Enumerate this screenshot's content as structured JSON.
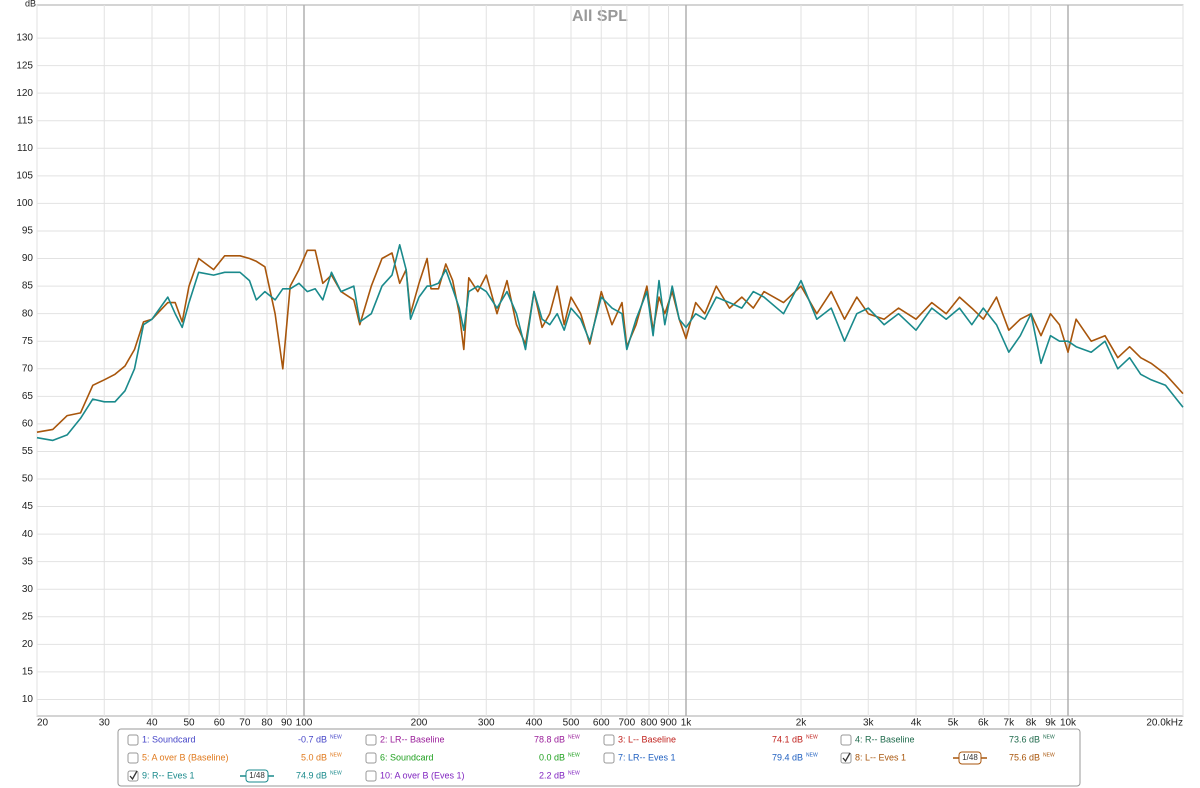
{
  "chart_data": {
    "type": "line",
    "title": "All SPL",
    "y_label": "dB",
    "log_x": true,
    "grid": true,
    "xlim": [
      20,
      20000
    ],
    "ylim": [
      7,
      136
    ],
    "xticks": [
      20,
      30,
      40,
      50,
      60,
      70,
      80,
      90,
      100,
      200,
      300,
      400,
      500,
      600,
      700,
      800,
      900,
      {
        "value": 1000,
        "label": "1k"
      },
      {
        "value": 2000,
        "label": "2k"
      },
      {
        "value": 3000,
        "label": "3k"
      },
      {
        "value": 4000,
        "label": "4k"
      },
      {
        "value": 5000,
        "label": "5k"
      },
      {
        "value": 6000,
        "label": "6k"
      },
      {
        "value": 7000,
        "label": "7k"
      },
      {
        "value": 8000,
        "label": "8k"
      },
      {
        "value": 9000,
        "label": "9k"
      },
      {
        "value": 10000,
        "label": "10k"
      },
      {
        "value": 20000,
        "label": "20.0kHz"
      }
    ],
    "yticks": [
      10,
      15,
      20,
      25,
      30,
      35,
      40,
      45,
      50,
      55,
      60,
      65,
      70,
      75,
      80,
      85,
      90,
      95,
      100,
      105,
      110,
      115,
      120,
      125,
      130
    ],
    "x": [
      20,
      22,
      24,
      26,
      28,
      30,
      32,
      34,
      36,
      38,
      40,
      44,
      46,
      48,
      50,
      53,
      58,
      62,
      68,
      72,
      75,
      79,
      84,
      88,
      92,
      97,
      102,
      107,
      112,
      118,
      125,
      135,
      140,
      150,
      160,
      170,
      178,
      185,
      190,
      200,
      210,
      215,
      225,
      235,
      245,
      255,
      262,
      270,
      285,
      300,
      320,
      340,
      360,
      380,
      400,
      420,
      440,
      460,
      480,
      500,
      530,
      560,
      600,
      640,
      680,
      700,
      740,
      790,
      820,
      850,
      880,
      920,
      960,
      1000,
      1060,
      1120,
      1200,
      1300,
      1400,
      1500,
      1600,
      1800,
      2000,
      2200,
      2400,
      2600,
      2800,
      3000,
      3300,
      3600,
      4000,
      4400,
      4800,
      5200,
      5600,
      6000,
      6500,
      7000,
      7500,
      8000,
      8500,
      9000,
      9500,
      10000,
      10500,
      11500,
      12500,
      13500,
      14500,
      15500,
      16500,
      18000,
      20000
    ],
    "series": [
      {
        "name": "1: Soundcard",
        "color": "#4646c8",
        "checked": false,
        "level": "-0.7 dB",
        "tag": "NEW"
      },
      {
        "name": "2: LR-- Baseline",
        "color": "#9a1e9a",
        "checked": false,
        "level": "78.8 dB",
        "tag": "NEW"
      },
      {
        "name": "3: L-- Baseline",
        "color": "#c0221e",
        "checked": false,
        "level": "74.1 dB",
        "tag": "NEW"
      },
      {
        "name": "4: R-- Baseline",
        "color": "#1f6a4c",
        "checked": false,
        "level": "73.6 dB",
        "tag": "NEW"
      },
      {
        "name": "5: A over B (Baseline)",
        "color": "#e07a1e",
        "checked": false,
        "level": "5.0 dB",
        "tag": "NEW"
      },
      {
        "name": "6: Soundcard",
        "color": "#20a020",
        "checked": false,
        "level": "0.0 dB",
        "tag": "NEW"
      },
      {
        "name": "7: LR-- Eves 1",
        "color": "#2060c0",
        "checked": false,
        "level": "79.4 dB",
        "tag": "NEW"
      },
      {
        "name": "8: L-- Eves 1",
        "color": "#a8560c",
        "checked": true,
        "level": "75.6 dB",
        "tag": "NEW",
        "smoothing": "1/48",
        "values": [
          58.5,
          59,
          61.5,
          62,
          67,
          68,
          69,
          70.5,
          73.5,
          78.5,
          79,
          82,
          82,
          78.5,
          85,
          90,
          88,
          90.5,
          90.5,
          90,
          89.5,
          88.5,
          80,
          70,
          85,
          88,
          91.5,
          91.5,
          85.5,
          87,
          84,
          82.5,
          78,
          85,
          90,
          91,
          85.5,
          88,
          80,
          85.5,
          90,
          84.5,
          84.5,
          89,
          86,
          80,
          73.5,
          86.5,
          84,
          87,
          80,
          86,
          78,
          74.5,
          84,
          77.5,
          80,
          85,
          78,
          83,
          80,
          74.5,
          84,
          78,
          82,
          74,
          78,
          85,
          77,
          83,
          80,
          84,
          79,
          75.5,
          82,
          80,
          85,
          81,
          83,
          81,
          84,
          82,
          85,
          80,
          84,
          79,
          83,
          80,
          79,
          81,
          79,
          82,
          80,
          83,
          81,
          79,
          83,
          77,
          79,
          80,
          76,
          80,
          78,
          73,
          79,
          75,
          76,
          72,
          74,
          72,
          71,
          69,
          65.5
        ]
      },
      {
        "name": "9: R-- Eves 1",
        "color": "#1a8a8c",
        "checked": true,
        "level": "74.9 dB",
        "tag": "NEW",
        "smoothing": "1/48",
        "values": [
          57.5,
          57,
          58,
          61,
          64.5,
          64,
          64,
          66,
          70,
          78,
          79,
          83,
          80,
          77.5,
          82,
          87.5,
          87,
          87.5,
          87.5,
          86,
          82.5,
          84,
          82.5,
          84.5,
          84.5,
          85.5,
          84,
          84.5,
          82.5,
          87.5,
          84,
          85,
          78.5,
          80,
          85,
          87,
          92.5,
          88,
          79,
          83,
          85,
          85,
          85.5,
          88,
          84.5,
          81,
          77,
          84,
          85,
          84,
          81,
          84,
          80,
          73.5,
          84,
          79,
          78,
          80,
          77,
          81,
          79,
          75,
          83,
          81,
          80,
          73.5,
          79,
          84,
          76,
          86,
          78,
          85,
          79,
          77.5,
          80,
          79,
          83,
          82,
          81,
          84,
          83,
          80,
          86,
          79,
          81,
          75,
          80,
          81,
          78,
          80,
          77,
          81,
          79,
          81,
          78,
          81,
          78,
          73,
          76,
          80,
          71,
          76,
          75,
          75,
          74,
          73,
          75,
          70,
          72,
          69,
          68,
          67,
          63
        ]
      },
      {
        "name": "10: A over B (Eves 1)",
        "color": "#8024c0",
        "checked": false,
        "level": "2.2 dB",
        "tag": "NEW"
      }
    ]
  }
}
